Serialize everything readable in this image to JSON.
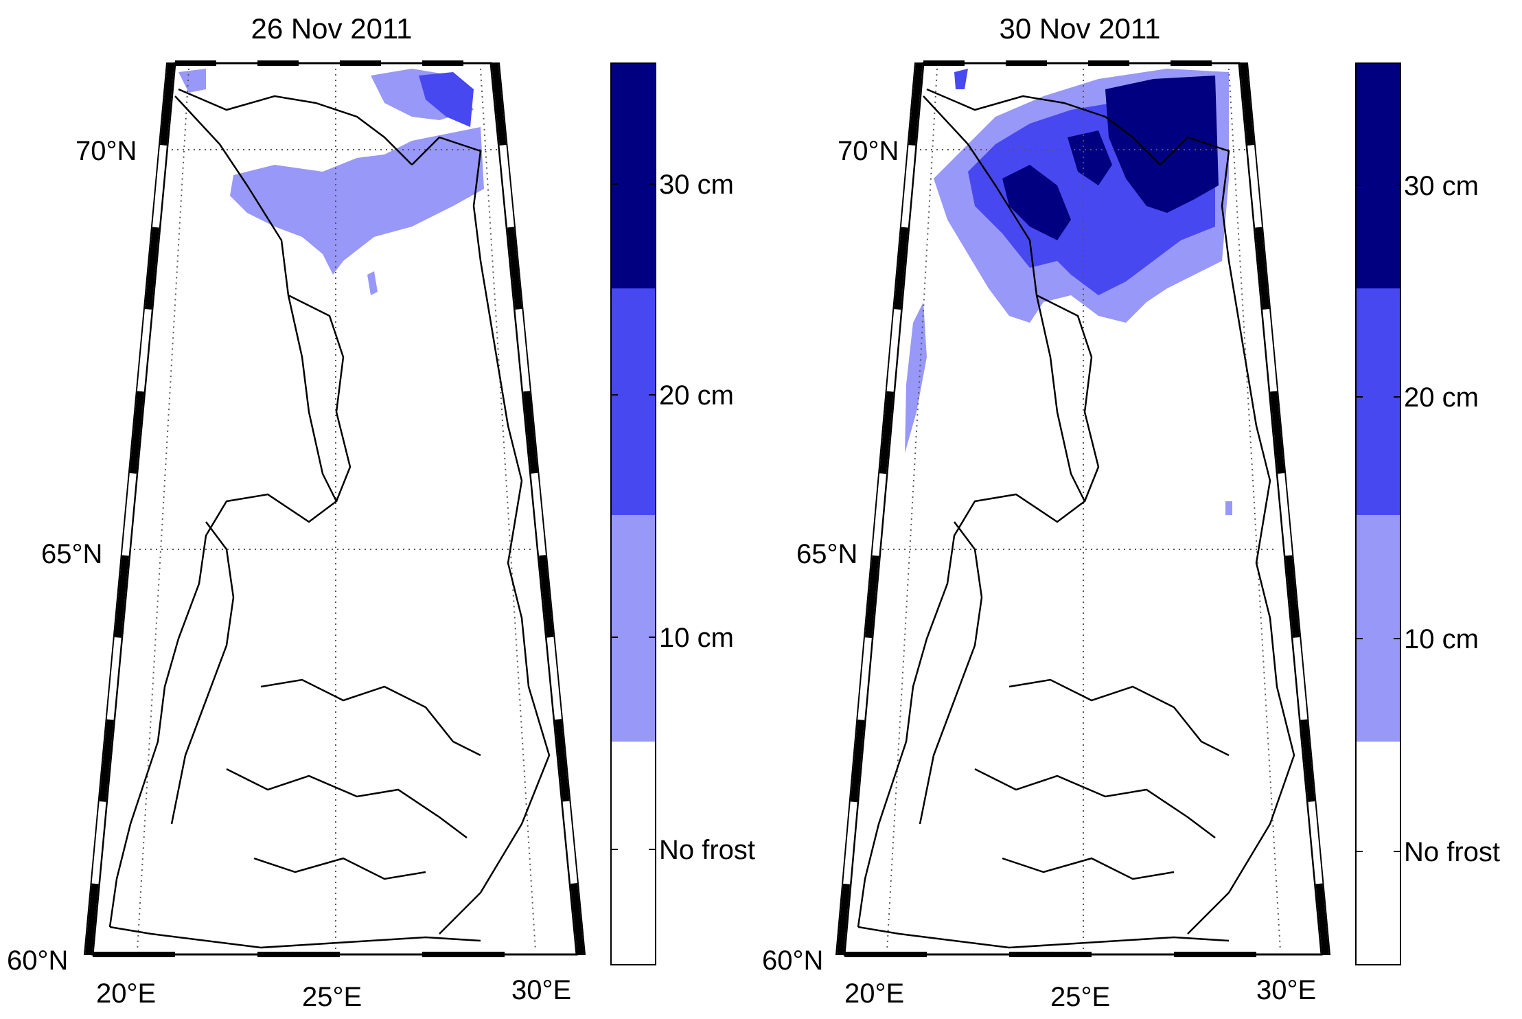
{
  "panels": [
    {
      "title": "26 Nov 2011",
      "lat_labels": [
        "70°N",
        "65°N",
        "60°N"
      ],
      "lon_labels": [
        "20°E",
        "25°E",
        "30°E"
      ]
    },
    {
      "title": "30 Nov 2011",
      "lat_labels": [
        "70°N",
        "65°N",
        "60°N"
      ],
      "lon_labels": [
        "20°E",
        "25°E",
        "30°E"
      ]
    }
  ],
  "colorbar": {
    "labels": [
      "30 cm",
      "20 cm",
      "10 cm",
      "No frost"
    ],
    "colors": [
      "#000080",
      "#4848f0",
      "#9898f8",
      "#ffffff"
    ]
  }
}
